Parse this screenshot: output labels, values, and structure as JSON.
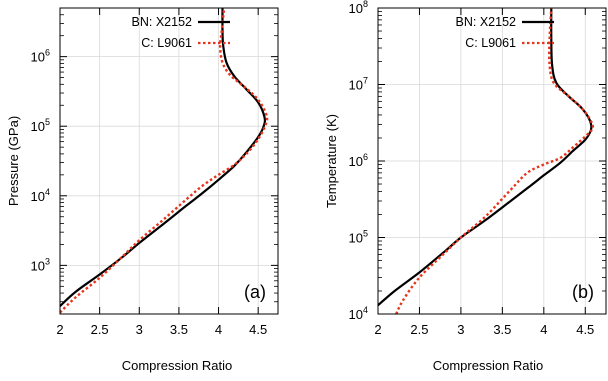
{
  "chart_data": [
    {
      "type": "line",
      "panel_label": "(a)",
      "xlabel": "Compression Ratio",
      "ylabel": "Pressure (GPa)",
      "xlim": [
        2,
        4.75
      ],
      "ylim": [
        200,
        5000000
      ],
      "yscale": "log",
      "xticks": [
        2,
        2.5,
        3,
        3.5,
        4,
        4.5
      ],
      "xtick_labels": [
        "2",
        "2.5",
        "3",
        "3.5",
        "4",
        "4.5"
      ],
      "yticks": [
        1000,
        10000,
        100000,
        1000000
      ],
      "ytick_labels": [
        {
          "base": "10",
          "exp": "3"
        },
        {
          "base": "10",
          "exp": "4"
        },
        {
          "base": "10",
          "exp": "5"
        },
        {
          "base": "10",
          "exp": "6"
        }
      ],
      "grid": true,
      "legend_position": "top-right",
      "series": [
        {
          "name": "BN: X2152",
          "color": "#000000",
          "style": "solid",
          "points": [
            [
              2.0,
              260
            ],
            [
              2.2,
              420
            ],
            [
              2.5,
              740
            ],
            [
              2.8,
              1350
            ],
            [
              3.0,
              2100
            ],
            [
              3.3,
              3900
            ],
            [
              3.6,
              7300
            ],
            [
              3.8,
              11000
            ],
            [
              4.0,
              17000
            ],
            [
              4.2,
              27000
            ],
            [
              4.35,
              42000
            ],
            [
              4.5,
              70000
            ],
            [
              4.57,
              100000
            ],
            [
              4.58,
              135000
            ],
            [
              4.5,
              220000
            ],
            [
              4.35,
              340000
            ],
            [
              4.2,
              520000
            ],
            [
              4.1,
              820000
            ],
            [
              4.06,
              1400000
            ],
            [
              4.05,
              2300000
            ],
            [
              4.05,
              5000000
            ]
          ]
        },
        {
          "name": "C: L9061",
          "color": "#e8341c",
          "style": "dotted",
          "points": [
            [
              2.0,
              210
            ],
            [
              2.2,
              350
            ],
            [
              2.5,
              660
            ],
            [
              2.8,
              1380
            ],
            [
              3.0,
              2300
            ],
            [
              3.3,
              4500
            ],
            [
              3.6,
              9000
            ],
            [
              3.8,
              14000
            ],
            [
              4.0,
              20000
            ],
            [
              4.2,
              28000
            ],
            [
              4.35,
              40000
            ],
            [
              4.5,
              65000
            ],
            [
              4.6,
              110000
            ],
            [
              4.6,
              150000
            ],
            [
              4.5,
              240000
            ],
            [
              4.35,
              350000
            ],
            [
              4.15,
              540000
            ],
            [
              4.05,
              820000
            ],
            [
              4.02,
              1400000
            ],
            [
              4.04,
              2300000
            ],
            [
              4.07,
              5000000
            ]
          ]
        }
      ]
    },
    {
      "type": "line",
      "panel_label": "(b)",
      "xlabel": "Compression Ratio",
      "ylabel": "Temperature (K)",
      "xlim": [
        2,
        4.75
      ],
      "ylim": [
        10000,
        100000000
      ],
      "yscale": "log",
      "xticks": [
        2,
        2.5,
        3,
        3.5,
        4,
        4.5
      ],
      "xtick_labels": [
        "2",
        "2.5",
        "3",
        "3.5",
        "4",
        "4.5"
      ],
      "yticks": [
        10000,
        100000,
        1000000,
        10000000,
        100000000
      ],
      "ytick_labels": [
        {
          "base": "10",
          "exp": "4"
        },
        {
          "base": "10",
          "exp": "5"
        },
        {
          "base": "10",
          "exp": "6"
        },
        {
          "base": "10",
          "exp": "7"
        },
        {
          "base": "10",
          "exp": "8"
        }
      ],
      "grid": true,
      "legend_position": "top-right",
      "series": [
        {
          "name": "BN: X2152",
          "color": "#000000",
          "style": "solid",
          "points": [
            [
              2.0,
              13000
            ],
            [
              2.2,
              20000
            ],
            [
              2.5,
              35000
            ],
            [
              2.8,
              65000
            ],
            [
              3.0,
              100000
            ],
            [
              3.3,
              170000
            ],
            [
              3.6,
              300000
            ],
            [
              3.8,
              440000
            ],
            [
              4.0,
              650000
            ],
            [
              4.2,
              950000
            ],
            [
              4.35,
              1350000
            ],
            [
              4.5,
              1900000
            ],
            [
              4.57,
              2600000
            ],
            [
              4.55,
              3500000
            ],
            [
              4.45,
              5000000
            ],
            [
              4.3,
              7000000
            ],
            [
              4.15,
              10500000
            ],
            [
              4.1,
              18000000
            ],
            [
              4.09,
              40000000
            ],
            [
              4.09,
              100000000
            ]
          ]
        },
        {
          "name": "C: L9061",
          "color": "#e8341c",
          "style": "dotted",
          "points": [
            [
              2.22,
              10000
            ],
            [
              2.3,
              15000
            ],
            [
              2.5,
              30000
            ],
            [
              2.8,
              62000
            ],
            [
              3.0,
              100000
            ],
            [
              3.3,
              190000
            ],
            [
              3.6,
              420000
            ],
            [
              3.8,
              700000
            ],
            [
              4.0,
              900000
            ],
            [
              4.2,
              1100000
            ],
            [
              4.35,
              1500000
            ],
            [
              4.5,
              2100000
            ],
            [
              4.59,
              2700000
            ],
            [
              4.55,
              3600000
            ],
            [
              4.45,
              5000000
            ],
            [
              4.3,
              7000000
            ],
            [
              4.12,
              10500000
            ],
            [
              4.07,
              18000000
            ],
            [
              4.07,
              40000000
            ],
            [
              4.09,
              100000000
            ]
          ]
        }
      ]
    }
  ]
}
